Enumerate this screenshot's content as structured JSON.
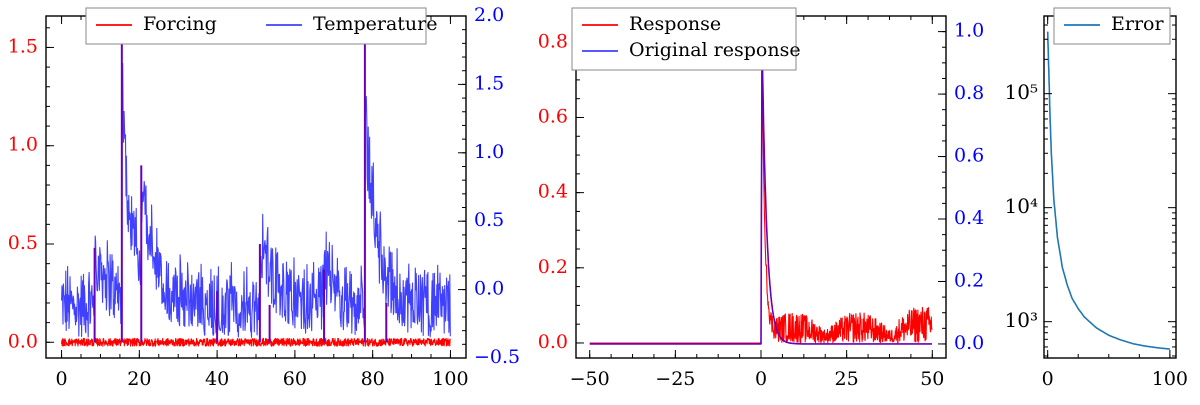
{
  "colors": {
    "red": "#ff0000",
    "blue": "#4040ff",
    "purple": "#6a00b8",
    "error": "#1f77b4",
    "axis": "#000000"
  },
  "chart_data": [
    {
      "type": "line",
      "panel": "left",
      "grid": false,
      "legend_location": "top-center",
      "x_range": [
        -4,
        104
      ],
      "y_left_range": [
        -0.08,
        1.66
      ],
      "y_right_range": [
        -0.5,
        2.0
      ],
      "x_ticks": [
        0,
        20,
        40,
        60,
        80,
        100
      ],
      "y_left_ticks": [
        0.0,
        0.5,
        1.0,
        1.5
      ],
      "y_right_ticks": [
        -0.5,
        0.0,
        0.5,
        1.0,
        1.5,
        2.0
      ],
      "x_tick_labels": [
        "0",
        "20",
        "40",
        "60",
        "80",
        "100"
      ],
      "y_left_tick_labels": [
        "0.0",
        "0.5",
        "1.0",
        "1.5"
      ],
      "y_right_tick_labels": [
        "−0.5",
        "0.0",
        "0.5",
        "1.0",
        "1.5",
        "2.0"
      ],
      "series": [
        {
          "name": "Forcing",
          "axis": "left",
          "color": "#ff0000",
          "baseline_band": [
            -0.02,
            0.02
          ],
          "spikes": [
            {
              "x": 8.5,
              "y": 0.48
            },
            {
              "x": 15.5,
              "y": 1.6
            },
            {
              "x": 20.5,
              "y": 0.9
            },
            {
              "x": 40.0,
              "y": 0.26
            },
            {
              "x": 51.0,
              "y": 0.5
            },
            {
              "x": 53.5,
              "y": 0.19
            },
            {
              "x": 67.5,
              "y": 0.37
            },
            {
              "x": 78.0,
              "y": 1.6
            },
            {
              "x": 83.5,
              "y": 0.2
            }
          ]
        },
        {
          "name": "Temperature",
          "axis": "right",
          "color": "#4040ff",
          "noise_band": [
            -0.35,
            0.25
          ],
          "peaks": [
            {
              "x": 8.5,
              "y": 0.62,
              "decay": 4
            },
            {
              "x": 15.5,
              "y": 1.86,
              "decay": 2.5
            },
            {
              "x": 20.5,
              "y": 0.95,
              "decay": 4
            },
            {
              "x": 51.0,
              "y": 0.68,
              "decay": 4
            },
            {
              "x": 67.5,
              "y": 0.47,
              "decay": 3
            },
            {
              "x": 78.0,
              "y": 1.8,
              "decay": 3
            }
          ]
        }
      ]
    },
    {
      "type": "line",
      "panel": "middle",
      "grid": false,
      "legend_location": "top-left",
      "x_range": [
        -54,
        54
      ],
      "y_left_range": [
        -0.04,
        0.87
      ],
      "y_right_range": [
        -0.045,
        1.05
      ],
      "x_ticks": [
        -50,
        -25,
        0,
        25,
        50
      ],
      "y_left_ticks": [
        0.0,
        0.2,
        0.4,
        0.6,
        0.8
      ],
      "y_right_ticks": [
        0.0,
        0.2,
        0.4,
        0.6,
        0.8,
        1.0
      ],
      "x_tick_labels": [
        "−50",
        "−25",
        "0",
        "25",
        "50"
      ],
      "y_left_tick_labels": [
        "0.0",
        "0.2",
        "0.4",
        "0.6",
        "0.8"
      ],
      "y_right_tick_labels": [
        "0.0",
        "0.2",
        "0.4",
        "0.6",
        "0.8",
        "1.0"
      ],
      "series": [
        {
          "name": "Response",
          "axis": "left",
          "color": "#ff0000",
          "peak": {
            "x": 0.3,
            "y": 0.83
          },
          "tail_noise_max": 0.13
        },
        {
          "name": "Original response",
          "axis": "right",
          "color": "#4040ff",
          "peak": {
            "x": 0.3,
            "y": 0.98
          },
          "decay": 1.4
        }
      ]
    },
    {
      "type": "line",
      "panel": "right",
      "grid": false,
      "legend_location": "top-right",
      "y_scale": "log",
      "x_range": [
        -3,
        105
      ],
      "y_range": [
        480,
        480000
      ],
      "x_ticks": [
        0,
        100
      ],
      "x_tick_labels": [
        "0",
        "100"
      ],
      "y_ticks": [
        1000,
        10000,
        100000
      ],
      "y_tick_labels": [
        "10³",
        "10⁴",
        "10⁵"
      ],
      "series": [
        {
          "name": "Error",
          "color": "#1f77b4",
          "x": [
            0,
            1,
            2,
            3,
            5,
            8,
            12,
            16,
            20,
            25,
            30,
            40,
            50,
            60,
            70,
            80,
            90,
            100
          ],
          "y": [
            350000,
            150000,
            60000,
            30000,
            12000,
            5500,
            3000,
            2100,
            1600,
            1300,
            1100,
            880,
            760,
            690,
            640,
            610,
            590,
            575
          ]
        }
      ]
    }
  ]
}
